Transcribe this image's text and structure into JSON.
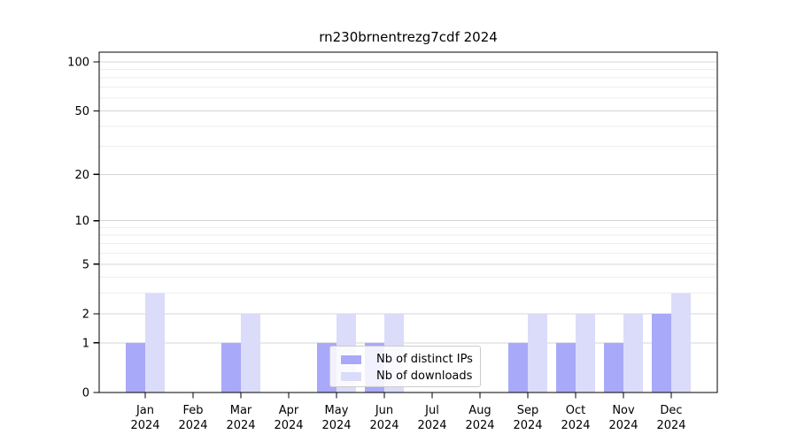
{
  "title": "rn230brnentrezg7cdf 2024",
  "colors": {
    "bar_distinct_ips": "#a8a9f8",
    "bar_downloads": "#dbdcf9",
    "grid_major": "#d4d4d4",
    "grid_minor": "#eeeeee",
    "axis_frame": "#000000",
    "tick_text": "#000000",
    "legend_border": "#cccccc"
  },
  "legend": {
    "entries": [
      {
        "label": "Nb of distinct IPs",
        "color": "#a8a9f8"
      },
      {
        "label": "Nb of downloads",
        "color": "#dbdcf9"
      }
    ]
  },
  "chart_data": {
    "type": "bar",
    "title": "rn230brnentrezg7cdf 2024",
    "categories": [
      "Jan",
      "Feb",
      "Mar",
      "Apr",
      "May",
      "Jun",
      "Jul",
      "Aug",
      "Sep",
      "Oct",
      "Nov",
      "Dec"
    ],
    "year_label": "2024",
    "series": [
      {
        "name": "Nb of distinct IPs",
        "color": "#a8a9f8",
        "values": [
          1,
          0,
          1,
          0,
          1,
          1,
          0,
          0,
          1,
          1,
          1,
          2
        ]
      },
      {
        "name": "Nb of downloads",
        "color": "#dbdcf9",
        "values": [
          3,
          0,
          2,
          0,
          2,
          2,
          0,
          0,
          2,
          2,
          2,
          3
        ]
      }
    ],
    "yscale": "log1p",
    "yticks": [
      0,
      1,
      2,
      5,
      10,
      20,
      50,
      100
    ],
    "yticks_minor": [
      3,
      4,
      6,
      7,
      8,
      9,
      30,
      40,
      60,
      70,
      80,
      90
    ],
    "ylim": [
      0,
      113
    ],
    "xlabel": "",
    "ylabel": "",
    "grid": "horizontal",
    "legend_position": "lower center"
  }
}
